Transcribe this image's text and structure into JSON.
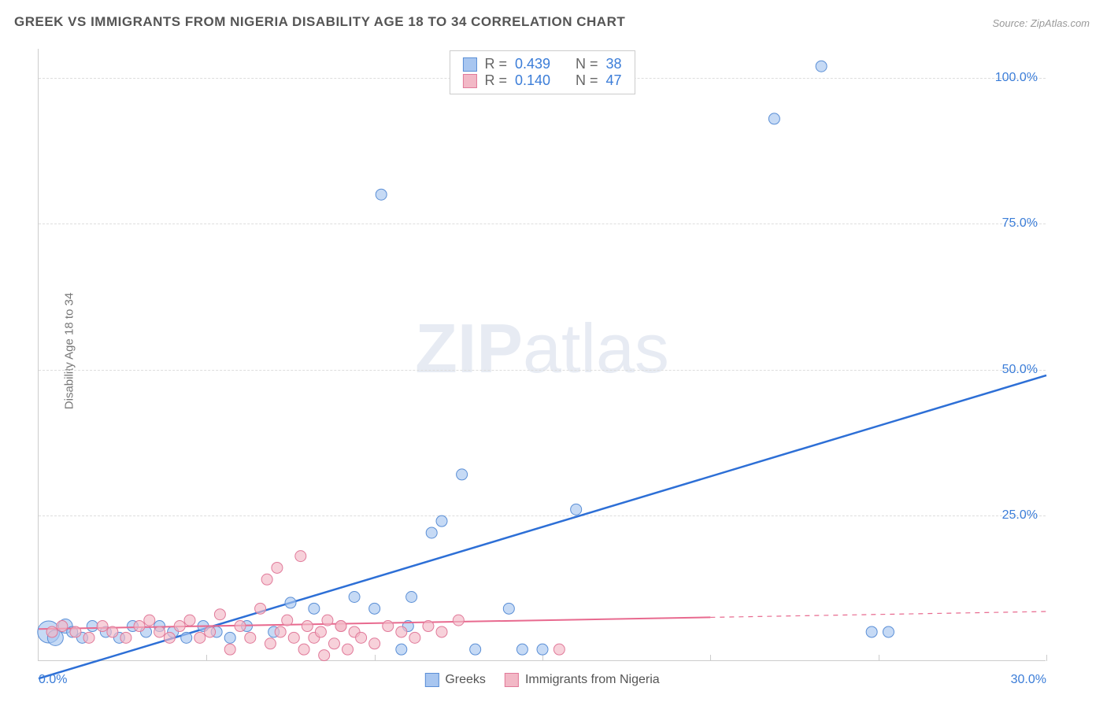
{
  "title": "GREEK VS IMMIGRANTS FROM NIGERIA DISABILITY AGE 18 TO 34 CORRELATION CHART",
  "source": "Source: ZipAtlas.com",
  "ylabel": "Disability Age 18 to 34",
  "watermark_bold": "ZIP",
  "watermark_rest": "atlas",
  "chart": {
    "type": "scatter",
    "xlim": [
      0,
      30
    ],
    "ylim": [
      0,
      105
    ],
    "xtick_step": 5,
    "xtick_labels_visible": {
      "0": "0.0%",
      "30": "30.0%"
    },
    "xtick_color": "#3b7dd8",
    "ytick_positions": [
      25,
      50,
      75,
      100
    ],
    "ytick_labels": [
      "25.0%",
      "50.0%",
      "75.0%",
      "100.0%"
    ],
    "ytick_color": "#3b7dd8",
    "grid_color": "#dddddd",
    "border_color": "#cccccc",
    "background_color": "#ffffff",
    "axis_fontsize": 16,
    "title_fontsize": 17,
    "title_color": "#555555",
    "label_fontsize": 15,
    "label_color": "#777777",
    "series": [
      {
        "name": "Greeks",
        "fill": "#a8c6f0",
        "stroke": "#5b8fd6",
        "opacity": 0.65,
        "marker_radius": 7,
        "R": "0.439",
        "N": "38",
        "trend": {
          "x1": 0,
          "y1": -3,
          "x2": 30,
          "y2": 49,
          "stroke": "#2d6fd6",
          "width": 2.5,
          "solid_until_x": 30
        },
        "points": [
          {
            "x": 0.3,
            "y": 5,
            "r": 14
          },
          {
            "x": 0.5,
            "y": 4,
            "r": 10
          },
          {
            "x": 0.8,
            "y": 6,
            "r": 9
          },
          {
            "x": 1.0,
            "y": 5,
            "r": 7
          },
          {
            "x": 1.3,
            "y": 4,
            "r": 7
          },
          {
            "x": 1.6,
            "y": 6,
            "r": 7
          },
          {
            "x": 2.0,
            "y": 5,
            "r": 7
          },
          {
            "x": 2.4,
            "y": 4,
            "r": 7
          },
          {
            "x": 2.8,
            "y": 6,
            "r": 7
          },
          {
            "x": 3.2,
            "y": 5,
            "r": 7
          },
          {
            "x": 3.6,
            "y": 6,
            "r": 7
          },
          {
            "x": 4.0,
            "y": 5,
            "r": 7
          },
          {
            "x": 4.4,
            "y": 4,
            "r": 7
          },
          {
            "x": 4.9,
            "y": 6,
            "r": 7
          },
          {
            "x": 5.3,
            "y": 5,
            "r": 7
          },
          {
            "x": 5.7,
            "y": 4,
            "r": 7
          },
          {
            "x": 6.2,
            "y": 6,
            "r": 7
          },
          {
            "x": 7.0,
            "y": 5,
            "r": 7
          },
          {
            "x": 7.5,
            "y": 10,
            "r": 7
          },
          {
            "x": 8.2,
            "y": 9,
            "r": 7
          },
          {
            "x": 9.4,
            "y": 11,
            "r": 7
          },
          {
            "x": 10.0,
            "y": 9,
            "r": 7
          },
          {
            "x": 10.2,
            "y": 80,
            "r": 7
          },
          {
            "x": 10.8,
            "y": 2,
            "r": 7
          },
          {
            "x": 11.0,
            "y": 6,
            "r": 7
          },
          {
            "x": 11.1,
            "y": 11,
            "r": 7
          },
          {
            "x": 11.7,
            "y": 22,
            "r": 7
          },
          {
            "x": 12.0,
            "y": 24,
            "r": 7
          },
          {
            "x": 12.6,
            "y": 32,
            "r": 7
          },
          {
            "x": 13.0,
            "y": 2,
            "r": 7
          },
          {
            "x": 14.0,
            "y": 9,
            "r": 7
          },
          {
            "x": 14.4,
            "y": 2,
            "r": 7
          },
          {
            "x": 15.0,
            "y": 2,
            "r": 7
          },
          {
            "x": 16.0,
            "y": 26,
            "r": 7
          },
          {
            "x": 21.9,
            "y": 93,
            "r": 7
          },
          {
            "x": 23.3,
            "y": 102,
            "r": 7
          },
          {
            "x": 24.8,
            "y": 5,
            "r": 7
          },
          {
            "x": 25.3,
            "y": 5,
            "r": 7
          }
        ]
      },
      {
        "name": "Immigrants from Nigeria",
        "fill": "#f2b8c6",
        "stroke": "#e17a9a",
        "opacity": 0.65,
        "marker_radius": 7,
        "R": "0.140",
        "N": "47",
        "trend": {
          "x1": 0,
          "y1": 5.5,
          "x2": 30,
          "y2": 8.5,
          "stroke": "#e86a8f",
          "width": 2,
          "solid_until_x": 20
        },
        "points": [
          {
            "x": 0.4,
            "y": 5,
            "r": 7
          },
          {
            "x": 0.7,
            "y": 6,
            "r": 7
          },
          {
            "x": 1.1,
            "y": 5,
            "r": 7
          },
          {
            "x": 1.5,
            "y": 4,
            "r": 7
          },
          {
            "x": 1.9,
            "y": 6,
            "r": 7
          },
          {
            "x": 2.2,
            "y": 5,
            "r": 7
          },
          {
            "x": 2.6,
            "y": 4,
            "r": 7
          },
          {
            "x": 3.0,
            "y": 6,
            "r": 7
          },
          {
            "x": 3.3,
            "y": 7,
            "r": 7
          },
          {
            "x": 3.6,
            "y": 5,
            "r": 7
          },
          {
            "x": 3.9,
            "y": 4,
            "r": 7
          },
          {
            "x": 4.2,
            "y": 6,
            "r": 7
          },
          {
            "x": 4.5,
            "y": 7,
            "r": 7
          },
          {
            "x": 4.8,
            "y": 4,
            "r": 7
          },
          {
            "x": 5.1,
            "y": 5,
            "r": 7
          },
          {
            "x": 5.4,
            "y": 8,
            "r": 7
          },
          {
            "x": 5.7,
            "y": 2,
            "r": 7
          },
          {
            "x": 6.0,
            "y": 6,
            "r": 7
          },
          {
            "x": 6.3,
            "y": 4,
            "r": 7
          },
          {
            "x": 6.6,
            "y": 9,
            "r": 7
          },
          {
            "x": 6.8,
            "y": 14,
            "r": 7
          },
          {
            "x": 6.9,
            "y": 3,
            "r": 7
          },
          {
            "x": 7.1,
            "y": 16,
            "r": 7
          },
          {
            "x": 7.2,
            "y": 5,
            "r": 7
          },
          {
            "x": 7.4,
            "y": 7,
            "r": 7
          },
          {
            "x": 7.6,
            "y": 4,
            "r": 7
          },
          {
            "x": 7.8,
            "y": 18,
            "r": 7
          },
          {
            "x": 7.9,
            "y": 2,
            "r": 7
          },
          {
            "x": 8.0,
            "y": 6,
            "r": 7
          },
          {
            "x": 8.2,
            "y": 4,
            "r": 7
          },
          {
            "x": 8.4,
            "y": 5,
            "r": 7
          },
          {
            "x": 8.5,
            "y": 1,
            "r": 7
          },
          {
            "x": 8.6,
            "y": 7,
            "r": 7
          },
          {
            "x": 8.8,
            "y": 3,
            "r": 7
          },
          {
            "x": 9.0,
            "y": 6,
            "r": 7
          },
          {
            "x": 9.2,
            "y": 2,
            "r": 7
          },
          {
            "x": 9.4,
            "y": 5,
            "r": 7
          },
          {
            "x": 9.6,
            "y": 4,
            "r": 7
          },
          {
            "x": 10.0,
            "y": 3,
            "r": 7
          },
          {
            "x": 10.4,
            "y": 6,
            "r": 7
          },
          {
            "x": 10.8,
            "y": 5,
            "r": 7
          },
          {
            "x": 11.2,
            "y": 4,
            "r": 7
          },
          {
            "x": 11.6,
            "y": 6,
            "r": 7
          },
          {
            "x": 12.0,
            "y": 5,
            "r": 7
          },
          {
            "x": 12.5,
            "y": 7,
            "r": 7
          },
          {
            "x": 15.5,
            "y": 2,
            "r": 7
          },
          {
            "x": 9.0,
            "y": 6,
            "r": 7
          }
        ]
      }
    ],
    "bottom_legend": [
      {
        "label": "Greeks",
        "fill": "#a8c6f0",
        "stroke": "#5b8fd6"
      },
      {
        "label": "Immigrants from Nigeria",
        "fill": "#f2b8c6",
        "stroke": "#e17a9a"
      }
    ],
    "stat_legend_labels": {
      "R": "R =",
      "N": "N ="
    }
  }
}
